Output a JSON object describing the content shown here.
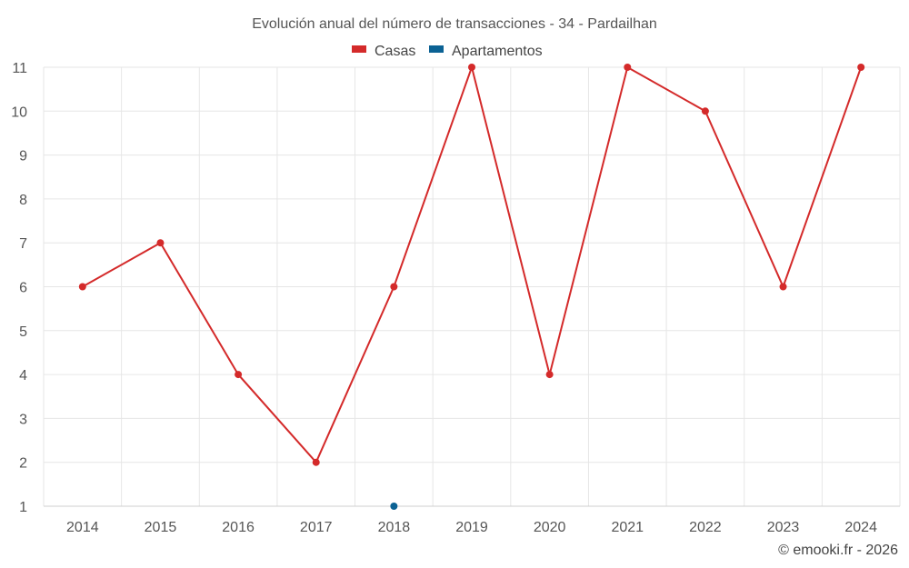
{
  "chart_data": {
    "type": "line",
    "title": "Evolución anual del número de transacciones - 34 - Pardailhan",
    "categories": [
      "2014",
      "2015",
      "2016",
      "2017",
      "2018",
      "2019",
      "2020",
      "2021",
      "2022",
      "2023",
      "2024"
    ],
    "ylim": [
      1,
      11
    ],
    "yticks": [
      1,
      2,
      3,
      4,
      5,
      6,
      7,
      8,
      9,
      10,
      11
    ],
    "grid": true,
    "legend_position": "top-center",
    "series": [
      {
        "name": "Casas",
        "color": "#d42a2a",
        "values": [
          6,
          7,
          4,
          2,
          6,
          11,
          4,
          11,
          10,
          6,
          11
        ]
      },
      {
        "name": "Apartamentos",
        "color": "#0b6294",
        "values": [
          null,
          null,
          null,
          null,
          1,
          null,
          null,
          null,
          null,
          null,
          null
        ]
      }
    ],
    "credit": "© emooki.fr - 2026"
  }
}
